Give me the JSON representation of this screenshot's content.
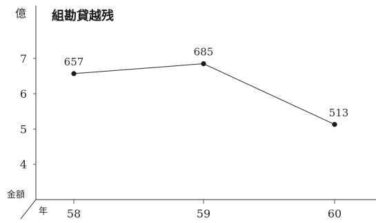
{
  "chart_data": {
    "type": "line",
    "title": "組勘貸越残",
    "yunit": "億",
    "ylabel": "金額",
    "xlabel": "年",
    "categories": [
      "58",
      "59",
      "60"
    ],
    "series": [
      {
        "values": [
          6.57,
          6.85,
          5.13
        ]
      }
    ],
    "data_labels": [
      "657",
      "685",
      "513"
    ],
    "yticks": [
      "4",
      "5",
      "6",
      "7"
    ],
    "ylim": [
      3.0,
      8.5
    ],
    "grid": false,
    "colors": {
      "line": "#3a3a3a",
      "marker": "#1a1a1a",
      "axis": "#555555"
    }
  }
}
